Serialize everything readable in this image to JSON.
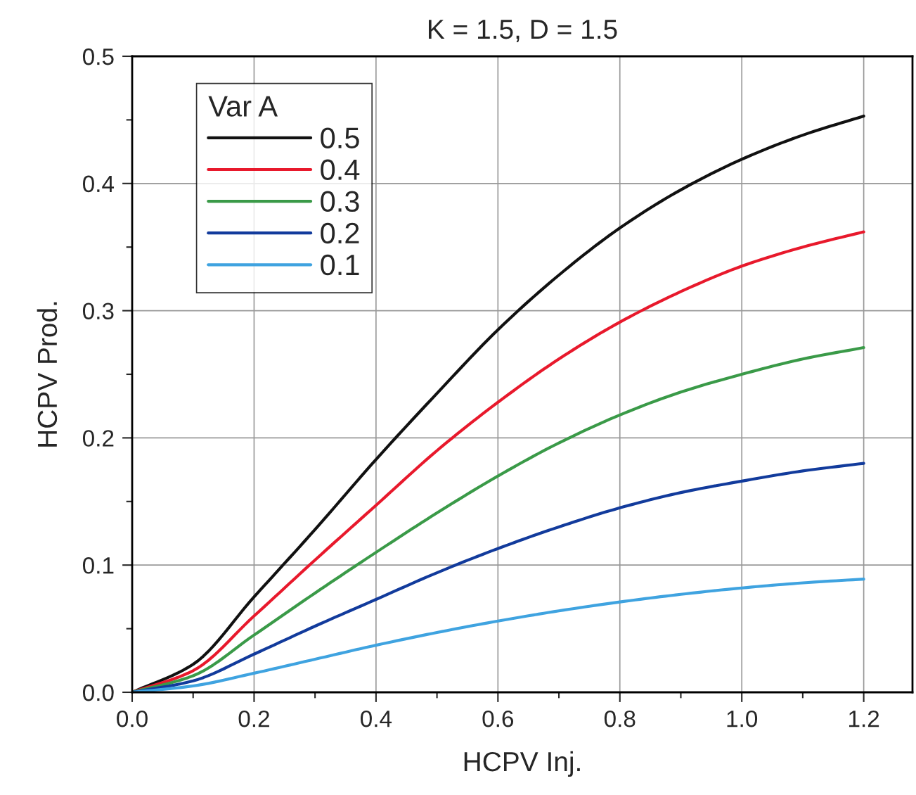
{
  "chart_data": {
    "type": "line",
    "title": "K = 1.5, D = 1.5",
    "xlabel": "HCPV Inj.",
    "ylabel": "HCPV Prod.",
    "legend_title": "Var A",
    "legend": "top left",
    "grid": true,
    "marker": "none",
    "line_style": "solid",
    "x": [
      0,
      0.1,
      0.2,
      0.3,
      0.4,
      0.5,
      0.6,
      0.7,
      0.8,
      0.9,
      1.0,
      1.1,
      1.2
    ],
    "xlim": [
      0,
      1.28
    ],
    "ylim": [
      0,
      0.5
    ],
    "xticks": [
      {
        "value": 0,
        "label": "0.0"
      },
      {
        "value": 0.1,
        "label": null
      },
      {
        "value": 0.2,
        "label": "0.2"
      },
      {
        "value": 0.3,
        "label": null
      },
      {
        "value": 0.4,
        "label": "0.4"
      },
      {
        "value": 0.5,
        "label": null
      },
      {
        "value": 0.6,
        "label": "0.6"
      },
      {
        "value": 0.7,
        "label": null
      },
      {
        "value": 0.8,
        "label": "0.8"
      },
      {
        "value": 0.9,
        "label": null
      },
      {
        "value": 1.0,
        "label": "1.0"
      },
      {
        "value": 1.1,
        "label": null
      },
      {
        "value": 1.2,
        "label": "1.2"
      }
    ],
    "yticks": [
      {
        "value": 0,
        "label": "0.0"
      },
      {
        "value": 0.05,
        "label": null
      },
      {
        "value": 0.1,
        "label": "0.1"
      },
      {
        "value": 0.15,
        "label": null
      },
      {
        "value": 0.2,
        "label": "0.2"
      },
      {
        "value": 0.25,
        "label": null
      },
      {
        "value": 0.3,
        "label": "0.3"
      },
      {
        "value": 0.35,
        "label": null
      },
      {
        "value": 0.4,
        "label": "0.4"
      },
      {
        "value": 0.45,
        "label": null
      },
      {
        "value": 0.5,
        "label": "0.5"
      }
    ],
    "series": [
      {
        "name": "0.5",
        "color": "#111111",
        "values": [
          0,
          0.022,
          0.075,
          0.128,
          0.183,
          0.235,
          0.285,
          0.328,
          0.365,
          0.395,
          0.419,
          0.438,
          0.453
        ]
      },
      {
        "name": "0.4",
        "color": "#e8192c",
        "values": [
          0,
          0.017,
          0.06,
          0.104,
          0.147,
          0.19,
          0.228,
          0.262,
          0.291,
          0.315,
          0.335,
          0.35,
          0.362
        ]
      },
      {
        "name": "0.3",
        "color": "#3a9a48",
        "values": [
          0,
          0.013,
          0.045,
          0.078,
          0.11,
          0.141,
          0.17,
          0.196,
          0.218,
          0.236,
          0.25,
          0.262,
          0.271
        ]
      },
      {
        "name": "0.2",
        "color": "#123b9c",
        "values": [
          0,
          0.009,
          0.03,
          0.052,
          0.073,
          0.094,
          0.113,
          0.13,
          0.145,
          0.157,
          0.166,
          0.174,
          0.18
        ]
      },
      {
        "name": "0.1",
        "color": "#3fa3e0",
        "values": [
          0,
          0.005,
          0.015,
          0.026,
          0.037,
          0.047,
          0.056,
          0.064,
          0.071,
          0.077,
          0.082,
          0.086,
          0.089
        ]
      }
    ]
  }
}
